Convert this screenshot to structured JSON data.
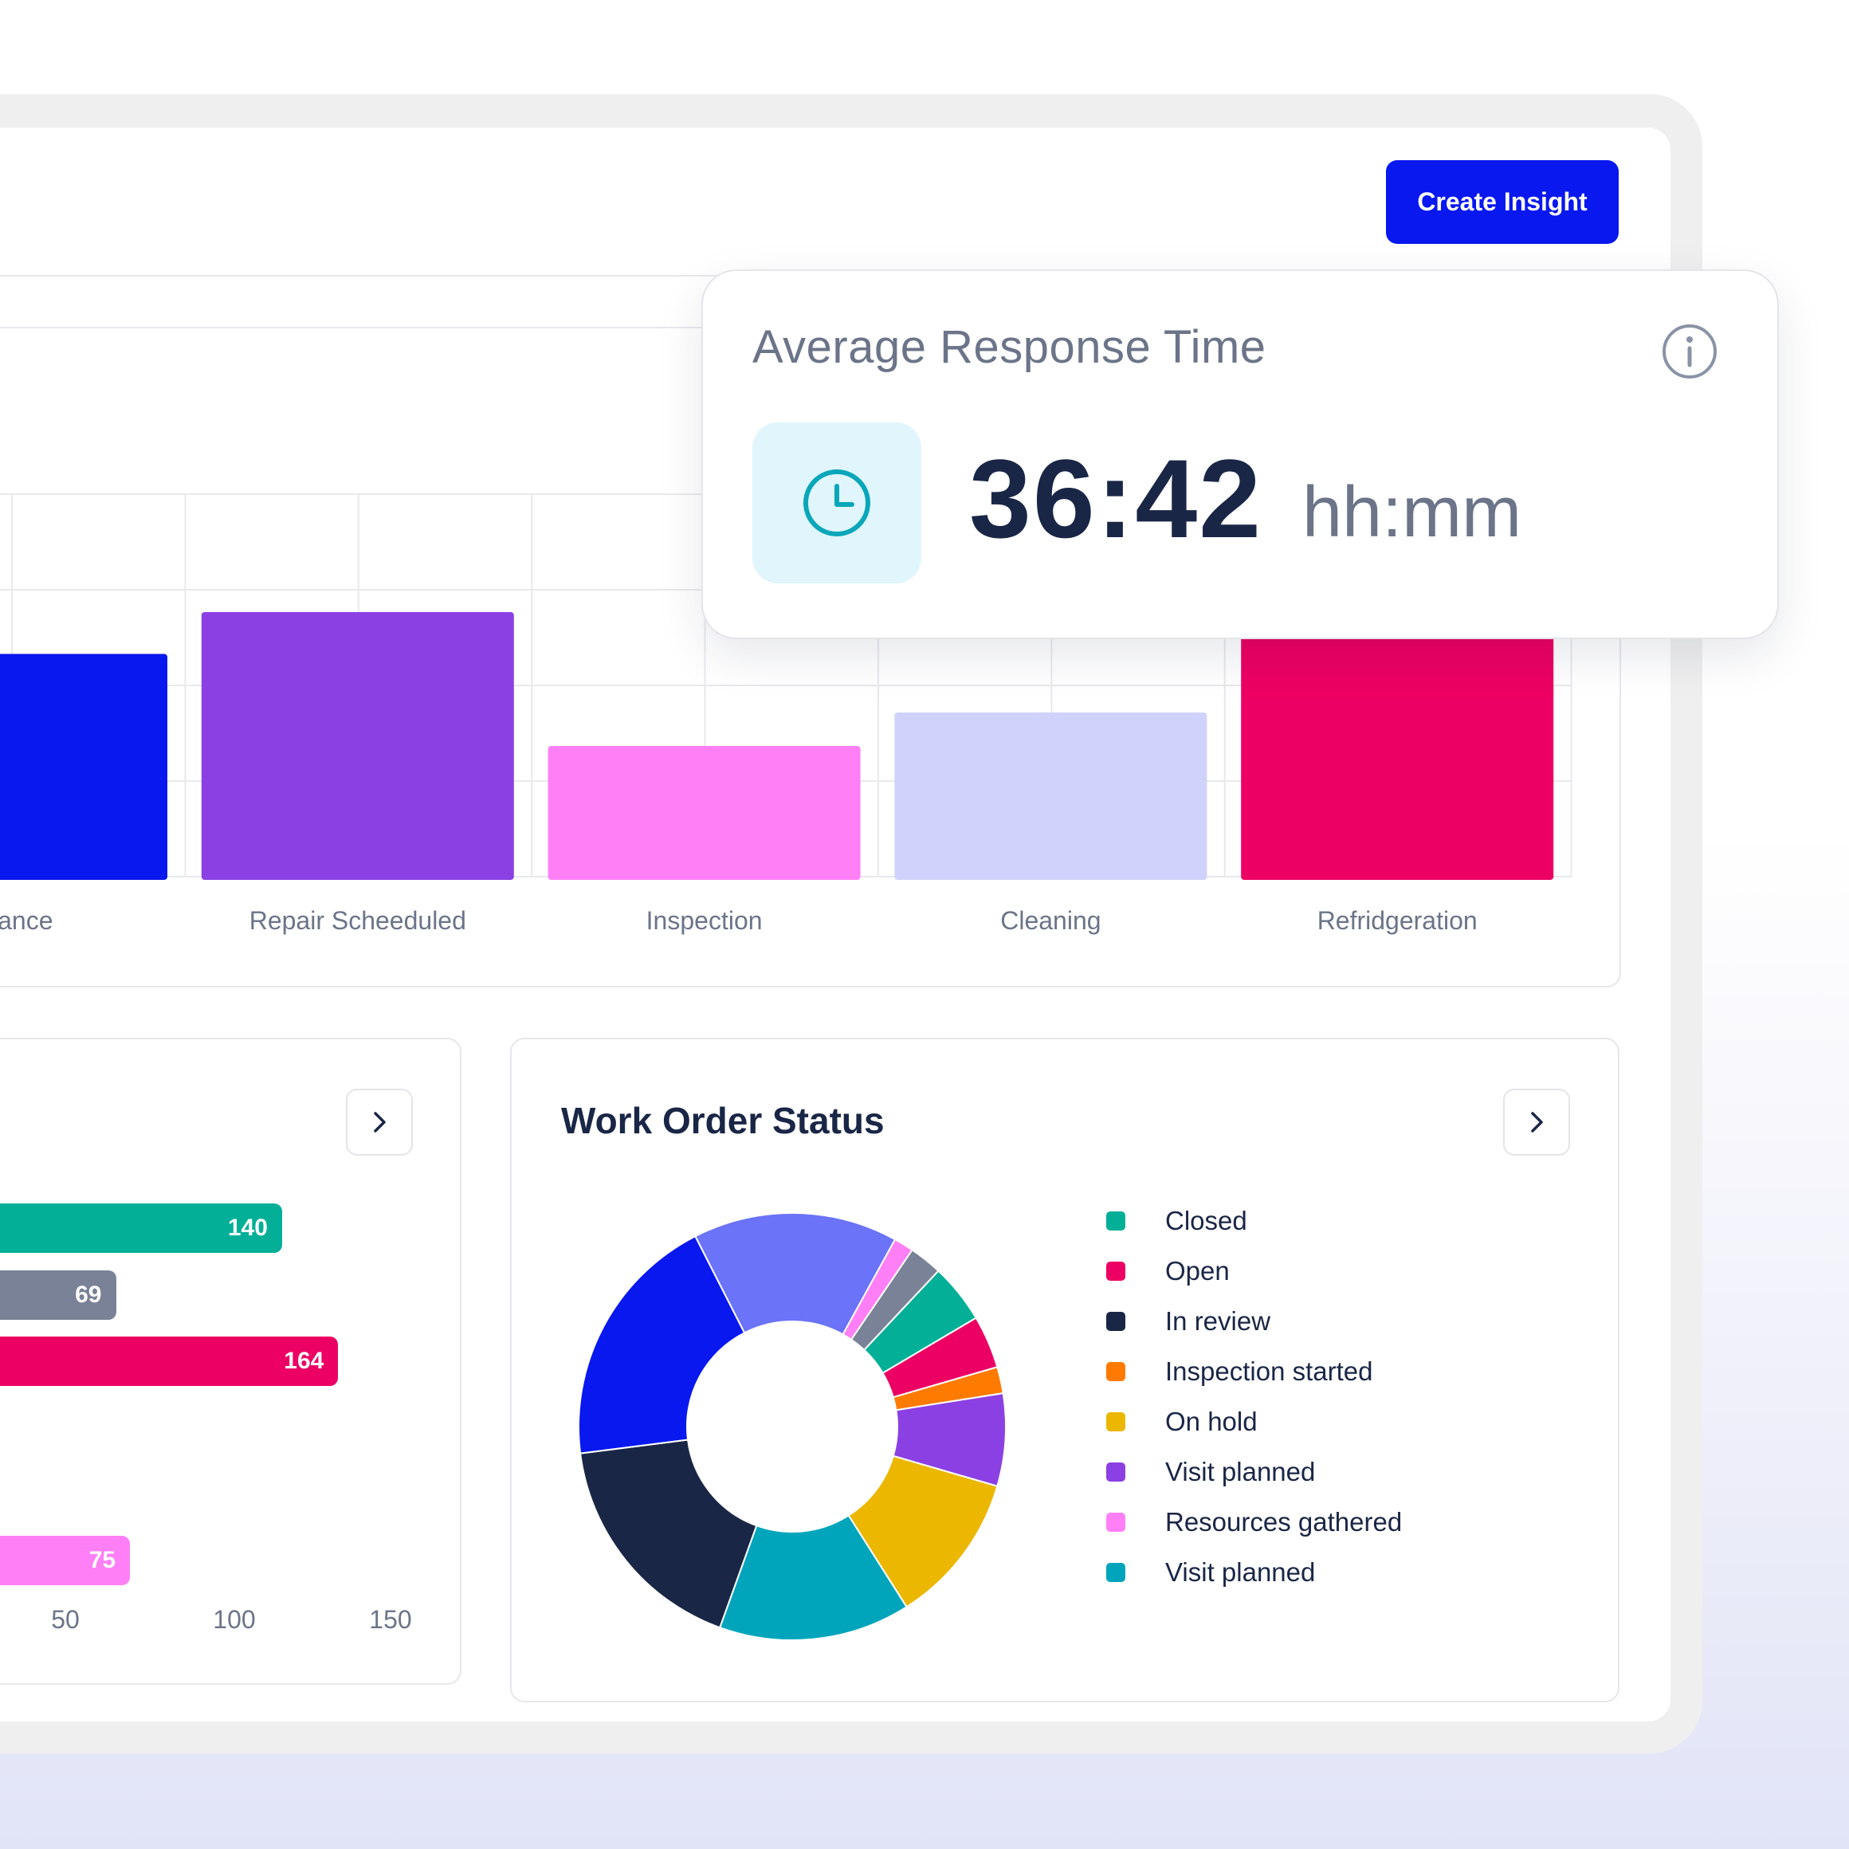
{
  "header": {
    "create_button_label": "Create Insight"
  },
  "category_chart": {
    "chart_data": {
      "type": "bar",
      "categories": [
        "Maintenance",
        "Repair Scheeduled",
        "Inspection",
        "Cleaning",
        "Refridgeration"
      ],
      "visible_labels": [
        "enance",
        "Repair Scheeduled",
        "Inspection",
        "Cleaning",
        "Refridgeration"
      ],
      "values": [
        2.7,
        3.2,
        1.6,
        2.0,
        8.2
      ],
      "colors": [
        "#0818ef",
        "#8b40e4",
        "#ff7ff6",
        "#cfd2fb",
        "#ec0063"
      ]
    }
  },
  "response_card": {
    "title": "Average Response Time",
    "value": "36:42",
    "unit": "hh:mm",
    "icons": {
      "clock": "clock-icon",
      "info": "info-icon"
    },
    "icon_bg": "#e0f6fc",
    "icon_color": "#0aa6b9"
  },
  "hbar_chart": {
    "chart_data": {
      "type": "bar",
      "orientation": "horizontal",
      "values": [
        140,
        69,
        164,
        75
      ],
      "colors": [
        "#04af98",
        "#798296",
        "#ec0063",
        "#ff7ff6"
      ],
      "xticks": [
        "50",
        "100",
        "150"
      ]
    }
  },
  "work_order": {
    "title": "Work Order Status",
    "legend": [
      {
        "label": "Closed",
        "color": "#04af98"
      },
      {
        "label": "Open",
        "color": "#ec0063"
      },
      {
        "label": "In review",
        "color": "#1a2646"
      },
      {
        "label": "Inspection started",
        "color": "#ff7a00"
      },
      {
        "label": "On hold",
        "color": "#ebb700"
      },
      {
        "label": "Visit planned",
        "color": "#8b40e4"
      },
      {
        "label": "Resources gathered",
        "color": "#ff7ff6"
      },
      {
        "label": "Visit planned",
        "color": "#00a5bc"
      }
    ],
    "chart_data": {
      "type": "pie",
      "donut": true,
      "slices": [
        {
          "color": "#6b73f8",
          "value": 15.5
        },
        {
          "color": "#ff7ff6",
          "value": 1.5
        },
        {
          "color": "#798296",
          "value": 2.5
        },
        {
          "color": "#04af98",
          "value": 4.5
        },
        {
          "color": "#ec0063",
          "value": 4.0
        },
        {
          "color": "#ff7a00",
          "value": 2.0
        },
        {
          "color": "#8b40e4",
          "value": 7.0
        },
        {
          "color": "#ebb700",
          "value": 11.5
        },
        {
          "color": "#00a5bc",
          "value": 14.5
        },
        {
          "color": "#1a2646",
          "value": 17.5
        },
        {
          "color": "#0818ef",
          "value": 19.5
        }
      ]
    }
  }
}
